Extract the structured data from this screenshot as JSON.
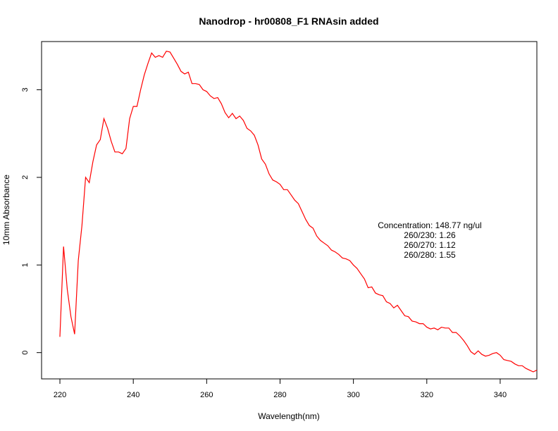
{
  "chart_data": {
    "type": "line",
    "title": "Nanodrop - hr00808_F1 RNAsin added",
    "xlabel": "Wavelength(nm)",
    "ylabel": "10mm Absorbance",
    "xlim": [
      215,
      350
    ],
    "ylim": [
      -0.3,
      3.55
    ],
    "x_ticks": [
      220,
      240,
      260,
      280,
      300,
      320,
      340
    ],
    "y_ticks": [
      0,
      1,
      2,
      3
    ],
    "grid": false,
    "line_color": "#ff0000",
    "series": [
      {
        "x": [
          220,
          221,
          222,
          223,
          224,
          225,
          226,
          227,
          228,
          229,
          230,
          231,
          232,
          233,
          234,
          235,
          236,
          237,
          238,
          239,
          240,
          241,
          242,
          243,
          244,
          245,
          246,
          247,
          248,
          249,
          250,
          251,
          252,
          253,
          254,
          255,
          256,
          257,
          258,
          259,
          260,
          261,
          262,
          263,
          264,
          265,
          266,
          267,
          268,
          269,
          270,
          271,
          272,
          273,
          274,
          275,
          276,
          277,
          278,
          279,
          280,
          281,
          282,
          283,
          284,
          285,
          286,
          287,
          288,
          289,
          290,
          291,
          292,
          293,
          294,
          295,
          296,
          297,
          298,
          299,
          300,
          301,
          302,
          303,
          304,
          305,
          306,
          307,
          308,
          309,
          310,
          311,
          312,
          313,
          314,
          315,
          316,
          317,
          318,
          319,
          320,
          321,
          322,
          323,
          324,
          325,
          326,
          327,
          328,
          329,
          330,
          331,
          332,
          333,
          334,
          335,
          336,
          337,
          338,
          339,
          340,
          341,
          342,
          343,
          344,
          345,
          346,
          347,
          348,
          349,
          350
        ],
        "y": [
          0.18,
          1.21,
          0.72,
          0.41,
          0.21,
          1.05,
          1.45,
          2.0,
          1.94,
          2.18,
          2.37,
          2.43,
          2.67,
          2.56,
          2.41,
          2.29,
          2.29,
          2.27,
          2.33,
          2.67,
          2.81,
          2.81,
          3.0,
          3.17,
          3.3,
          3.42,
          3.37,
          3.39,
          3.37,
          3.44,
          3.43,
          3.36,
          3.29,
          3.21,
          3.18,
          3.2,
          3.07,
          3.07,
          3.06,
          3.0,
          2.98,
          2.93,
          2.9,
          2.91,
          2.84,
          2.74,
          2.68,
          2.73,
          2.67,
          2.7,
          2.65,
          2.56,
          2.53,
          2.48,
          2.37,
          2.21,
          2.15,
          2.04,
          1.97,
          1.95,
          1.92,
          1.86,
          1.86,
          1.8,
          1.74,
          1.7,
          1.61,
          1.52,
          1.45,
          1.42,
          1.33,
          1.28,
          1.25,
          1.22,
          1.17,
          1.15,
          1.12,
          1.08,
          1.07,
          1.05,
          1.0,
          0.96,
          0.9,
          0.84,
          0.74,
          0.75,
          0.68,
          0.66,
          0.65,
          0.58,
          0.56,
          0.51,
          0.54,
          0.48,
          0.42,
          0.41,
          0.36,
          0.35,
          0.33,
          0.33,
          0.29,
          0.27,
          0.28,
          0.26,
          0.29,
          0.28,
          0.28,
          0.23,
          0.23,
          0.19,
          0.14,
          0.08,
          0.01,
          -0.02,
          0.02,
          -0.02,
          -0.04,
          -0.03,
          -0.01,
          0.0,
          -0.03,
          -0.08,
          -0.09,
          -0.1,
          -0.13,
          -0.15,
          -0.15,
          -0.18,
          -0.2,
          -0.22,
          -0.2
        ]
      }
    ],
    "annotations": [
      "Concentration: 148.77 ng/ul",
      "260/230: 1.26",
      "260/270: 1.12",
      "260/280: 1.55"
    ]
  }
}
